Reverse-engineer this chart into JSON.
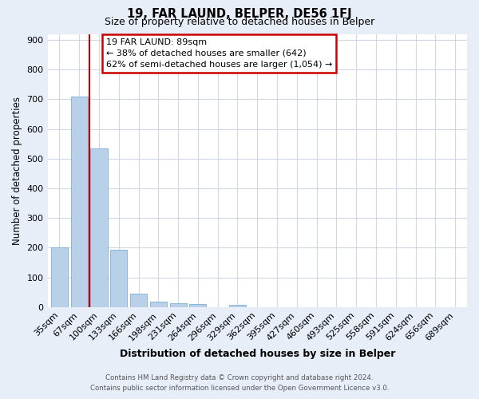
{
  "title": "19, FAR LAUND, BELPER, DE56 1FJ",
  "subtitle": "Size of property relative to detached houses in Belper",
  "xlabel": "Distribution of detached houses by size in Belper",
  "ylabel": "Number of detached properties",
  "bar_labels": [
    "35sqm",
    "67sqm",
    "100sqm",
    "133sqm",
    "166sqm",
    "198sqm",
    "231sqm",
    "264sqm",
    "296sqm",
    "329sqm",
    "362sqm",
    "395sqm",
    "427sqm",
    "460sqm",
    "493sqm",
    "525sqm",
    "558sqm",
    "591sqm",
    "624sqm",
    "656sqm",
    "689sqm"
  ],
  "bar_values": [
    202,
    710,
    535,
    193,
    45,
    18,
    14,
    10,
    0,
    8,
    0,
    0,
    0,
    0,
    0,
    0,
    0,
    0,
    0,
    0,
    0
  ],
  "bar_color": "#b8d0e8",
  "bar_edge_color": "#7aafd4",
  "vline_x_index": 1.5,
  "vline_color": "#cc0000",
  "ylim": [
    0,
    920
  ],
  "yticks": [
    0,
    100,
    200,
    300,
    400,
    500,
    600,
    700,
    800,
    900
  ],
  "annotation_title": "19 FAR LAUND: 89sqm",
  "annotation_line1": "← 38% of detached houses are smaller (642)",
  "annotation_line2": "62% of semi-detached houses are larger (1,054) →",
  "annotation_box_edge_color": "#cc0000",
  "annotation_box_face_color": "#ffffff",
  "footer_line1": "Contains HM Land Registry data © Crown copyright and database right 2024.",
  "footer_line2": "Contains public sector information licensed under the Open Government Licence v3.0.",
  "fig_background_color": "#e8eef8",
  "plot_background_color": "#ffffff",
  "grid_color": "#d0d8e8"
}
